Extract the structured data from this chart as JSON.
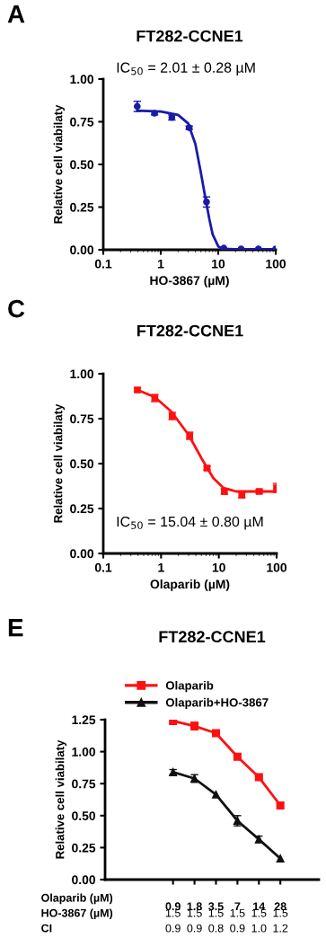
{
  "chart_data": [
    {
      "type": "scatter",
      "title": "FT282-CCNE1",
      "xlabel": "HO-3867 (µM)",
      "ylabel": "Relative cell viabilaty",
      "annotations": [
        "A",
        "IC$_{50}$ = 2.01 ± 0.28 µM"
      ],
      "log": "x",
      "xlim": [
        0.1,
        100
      ],
      "xticks": [
        0.1,
        1,
        10,
        100
      ],
      "ylim": [
        0,
        1
      ],
      "yticks": [
        {
          "value": 0,
          "label": "0.00"
        },
        {
          "value": 0.25,
          "label": "0.25"
        },
        {
          "value": 0.5,
          "label": "0.50"
        },
        {
          "value": 0.75,
          "label": "0.75"
        },
        {
          "value": 1,
          "label": "1.00"
        }
      ],
      "series": [
        {
          "type": "scatter",
          "color": "#1a1aaa",
          "marker": "circle",
          "x": [
            0.39,
            0.78,
            1.56,
            3.125,
            6.25,
            12.5,
            25,
            50,
            100
          ],
          "values": [
            0.84,
            0.8,
            0.775,
            0.715,
            0.28,
            0.01,
            0.005,
            0.005,
            0.005
          ],
          "errors": [
            0.03,
            0.01,
            0.015,
            0.01,
            0.03,
            null,
            null,
            null,
            null
          ]
        },
        {
          "type": "line",
          "color": "#1a1aaa",
          "x": [
            0.39,
            1,
            2,
            3,
            4,
            5,
            6,
            7,
            8,
            10,
            12,
            20,
            100
          ],
          "values": [
            0.815,
            0.81,
            0.79,
            0.74,
            0.62,
            0.45,
            0.3,
            0.18,
            0.09,
            0.02,
            0.005,
            0.003,
            0.003
          ]
        }
      ]
    },
    {
      "type": "scatter",
      "title": "FT282-CCNE1",
      "xlabel": "Olaparib (µM)",
      "ylabel": "Relative cell viabilaty",
      "annotations": [
        "C",
        "IC$_{50}$ = 15.04 ± 0.80 µM"
      ],
      "log": "x",
      "xlim": [
        0.1,
        100
      ],
      "xticks": [
        0.1,
        1,
        10,
        100
      ],
      "ylim": [
        0,
        1
      ],
      "yticks": [
        {
          "value": 0,
          "label": "0.00"
        },
        {
          "value": 0.25,
          "label": "0.25"
        },
        {
          "value": 0.5,
          "label": "0.50"
        },
        {
          "value": 0.75,
          "label": "0.75"
        },
        {
          "value": 1,
          "label": "1.00"
        }
      ],
      "series": [
        {
          "type": "scatter",
          "color": "#ff1010",
          "marker": "square",
          "x": [
            0.39,
            0.78,
            1.56,
            3.125,
            6.25,
            12.5,
            25,
            50,
            100
          ],
          "values": [
            0.91,
            0.865,
            0.765,
            0.655,
            0.475,
            0.345,
            0.325,
            0.345,
            0.365
          ],
          "errors": [
            0.01,
            0.02,
            0.02,
            0.02,
            0.01,
            0.015,
            0.015,
            0.01,
            0.025
          ]
        },
        {
          "type": "line",
          "color": "#ff1010",
          "x": [
            0.39,
            0.78,
            1.5,
            3,
            5,
            8,
            12,
            20,
            100
          ],
          "values": [
            0.91,
            0.87,
            0.79,
            0.66,
            0.53,
            0.42,
            0.365,
            0.345,
            0.345
          ]
        }
      ]
    },
    {
      "type": "line",
      "title": "FT282-CCNE1",
      "xlabel": "Olaparib (µM)",
      "ylabel": "Relative cell viabilaty",
      "annotations": [
        "E",
        "HO-3867 (µM)",
        "1.5",
        "1.5",
        "1.5",
        "1.5",
        "1.5",
        "1.5",
        "CI",
        "0.9",
        "0.9",
        "0.8",
        "0.9",
        "1.0",
        "1.2"
      ],
      "categories": [
        "0.9",
        "1.8",
        "3.5",
        "7",
        "14",
        "28"
      ],
      "ylim": [
        0,
        1.25
      ],
      "yticks": [
        {
          "value": 0,
          "label": "0.00"
        },
        {
          "value": 0.25,
          "label": "0.25"
        },
        {
          "value": 0.5,
          "label": "0.50"
        },
        {
          "value": 0.75,
          "label": "0.75"
        },
        {
          "value": 1,
          "label": "1.00"
        },
        {
          "value": 1.25,
          "label": "1.25"
        }
      ],
      "legend": "top",
      "series": [
        {
          "name": "Olaparib",
          "color": "#ff1010",
          "marker": "square",
          "values": [
            1.24,
            1.2,
            1.145,
            0.96,
            0.8,
            0.58
          ],
          "errors": [
            0.02,
            0.03,
            0.01,
            0.02,
            0.01,
            null
          ]
        },
        {
          "name": "Olaparib+HO-3867",
          "color": "#111111",
          "marker": "triangle",
          "values": [
            0.84,
            0.79,
            0.665,
            0.46,
            0.315,
            0.165
          ],
          "errors": [
            0.02,
            0.03,
            null,
            0.04,
            0.025,
            null
          ]
        }
      ]
    }
  ]
}
